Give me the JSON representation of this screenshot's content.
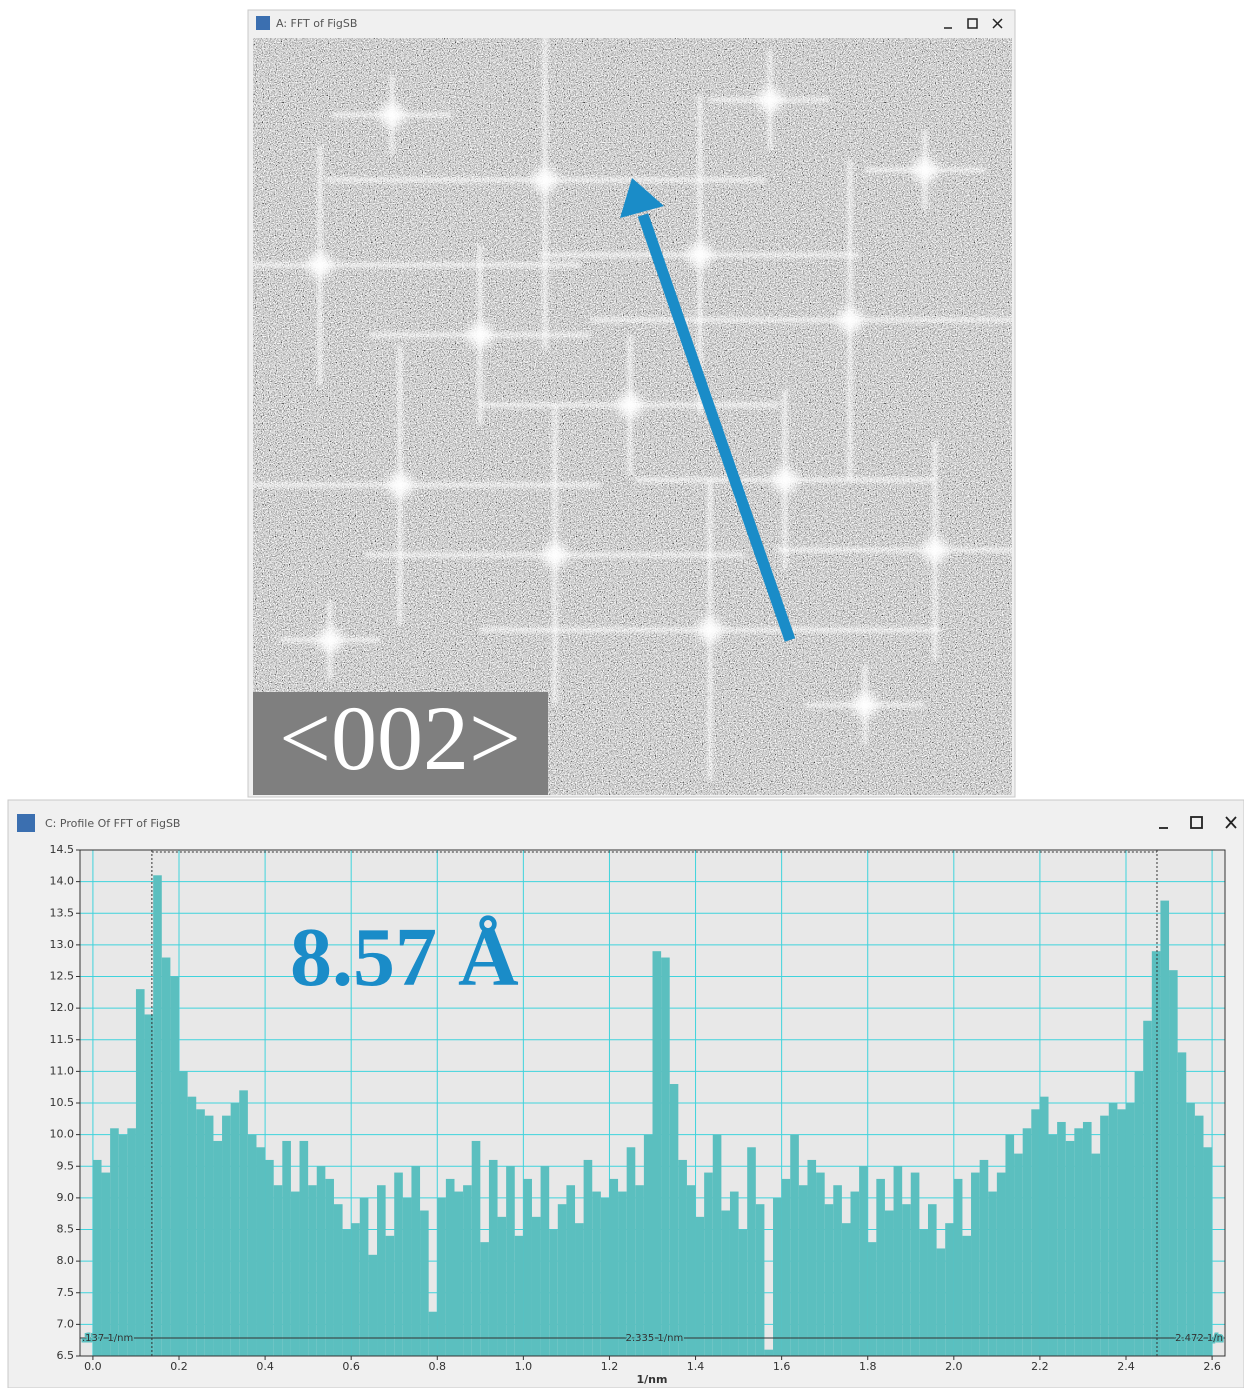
{
  "fft_window": {
    "title": "A: FFT of FigSB",
    "label": "<002>"
  },
  "profile_window": {
    "title": "C: Profile Of FFT of FigSB"
  },
  "chart_data": {
    "type": "histogram",
    "annotation": "8.57 Å",
    "x_label": "1/nm",
    "color": "#5bbfbf",
    "grid": true,
    "grid_color": "#3fd3dc",
    "xlim": [
      -0.03,
      2.63
    ],
    "ylim": [
      6.5,
      14.5
    ],
    "xticks": [
      {
        "value": 0,
        "label": "0.0"
      },
      0.2,
      0.4,
      0.6,
      0.8,
      {
        "value": 1,
        "label": "1.0"
      },
      1.2,
      1.4,
      1.6,
      1.8,
      {
        "value": 2,
        "label": "2.0"
      },
      2.2,
      2.4,
      2.6
    ],
    "yticks": [
      6.5,
      {
        "value": 7,
        "label": "7.0"
      },
      7.5,
      {
        "value": 8,
        "label": "8.0"
      },
      8.5,
      {
        "value": 9,
        "label": "9.0"
      },
      9.5,
      {
        "value": 10,
        "label": "10.0"
      },
      10.5,
      {
        "value": 11,
        "label": "11.0"
      },
      11.5,
      {
        "value": 12,
        "label": "12.0"
      },
      12.5,
      {
        "value": 13,
        "label": "13.0"
      },
      13.5,
      {
        "value": 14,
        "label": "14.0"
      },
      14.5
    ],
    "measurement": {
      "start": 0.137,
      "end": 2.472,
      "start_label": ".137 1/nm",
      "end_label": "2.472 1/n",
      "length_label": "2.335 1/nm"
    },
    "bins": [
      0,
      0.02,
      0.04,
      0.06,
      0.08,
      0.1,
      0.12,
      0.14,
      0.16,
      0.18,
      0.2,
      0.22,
      0.24,
      0.26,
      0.28,
      0.3,
      0.32,
      0.34,
      0.36,
      0.38,
      0.4,
      0.42,
      0.44,
      0.46,
      0.48,
      0.5,
      0.52,
      0.54,
      0.56,
      0.58,
      0.6,
      0.62,
      0.64,
      0.66,
      0.68,
      0.7,
      0.72,
      0.74,
      0.76,
      0.78,
      0.8,
      0.82,
      0.84,
      0.86,
      0.88,
      0.9,
      0.92,
      0.94,
      0.96,
      0.98,
      1,
      1.02,
      1.04,
      1.06,
      1.08,
      1.1,
      1.12,
      1.14,
      1.16,
      1.18,
      1.2,
      1.22,
      1.24,
      1.26,
      1.28,
      1.3,
      1.32,
      1.34,
      1.36,
      1.38,
      1.4,
      1.42,
      1.44,
      1.46,
      1.48,
      1.5,
      1.52,
      1.54,
      1.56,
      1.58,
      1.6,
      1.62,
      1.64,
      1.66,
      1.68,
      1.7,
      1.72,
      1.74,
      1.76,
      1.78,
      1.8,
      1.82,
      1.84,
      1.86,
      1.88,
      1.9,
      1.92,
      1.94,
      1.96,
      1.98,
      2,
      2.02,
      2.04,
      2.06,
      2.08,
      2.1,
      2.12,
      2.14,
      2.16,
      2.18,
      2.2,
      2.22,
      2.24,
      2.26,
      2.28,
      2.3,
      2.32,
      2.34,
      2.36,
      2.38,
      2.4,
      2.42,
      2.44,
      2.46,
      2.48,
      2.5,
      2.52,
      2.54,
      2.56,
      2.58,
      2.6
    ],
    "values": [
      9.6,
      9.4,
      10.1,
      10.0,
      10.1,
      12.3,
      11.9,
      14.1,
      12.8,
      12.5,
      11.0,
      10.6,
      10.4,
      10.3,
      9.9,
      10.3,
      10.5,
      10.7,
      10.0,
      9.8,
      9.6,
      9.2,
      9.9,
      9.1,
      9.9,
      9.2,
      9.5,
      9.3,
      8.9,
      8.5,
      8.6,
      9.0,
      8.1,
      9.2,
      8.4,
      9.4,
      9.0,
      9.5,
      8.8,
      7.2,
      9.0,
      9.3,
      9.1,
      9.2,
      9.9,
      8.3,
      9.6,
      8.7,
      9.5,
      8.4,
      9.3,
      8.7,
      9.5,
      8.5,
      8.9,
      9.2,
      8.6,
      9.6,
      9.1,
      9.0,
      9.3,
      9.1,
      9.8,
      9.2,
      10.0,
      12.9,
      12.8,
      10.8,
      9.6,
      9.2,
      8.7,
      9.4,
      10.0,
      8.8,
      9.1,
      8.5,
      9.8,
      8.9,
      6.6,
      9.0,
      9.3,
      10.0,
      9.2,
      9.6,
      9.4,
      8.9,
      9.2,
      8.6,
      9.1,
      9.5,
      8.3,
      9.3,
      8.8,
      9.5,
      8.9,
      9.4,
      8.5,
      8.9,
      8.2,
      8.6,
      9.3,
      8.4,
      9.4,
      9.6,
      9.1,
      9.4,
      10.0,
      9.7,
      10.1,
      10.4,
      10.6,
      10.0,
      10.2,
      9.9,
      10.1,
      10.2,
      9.7,
      10.3,
      10.5,
      10.4,
      10.5,
      11.0,
      11.8,
      12.9,
      13.7,
      12.6,
      11.3,
      10.5,
      10.3,
      9.8
    ]
  }
}
